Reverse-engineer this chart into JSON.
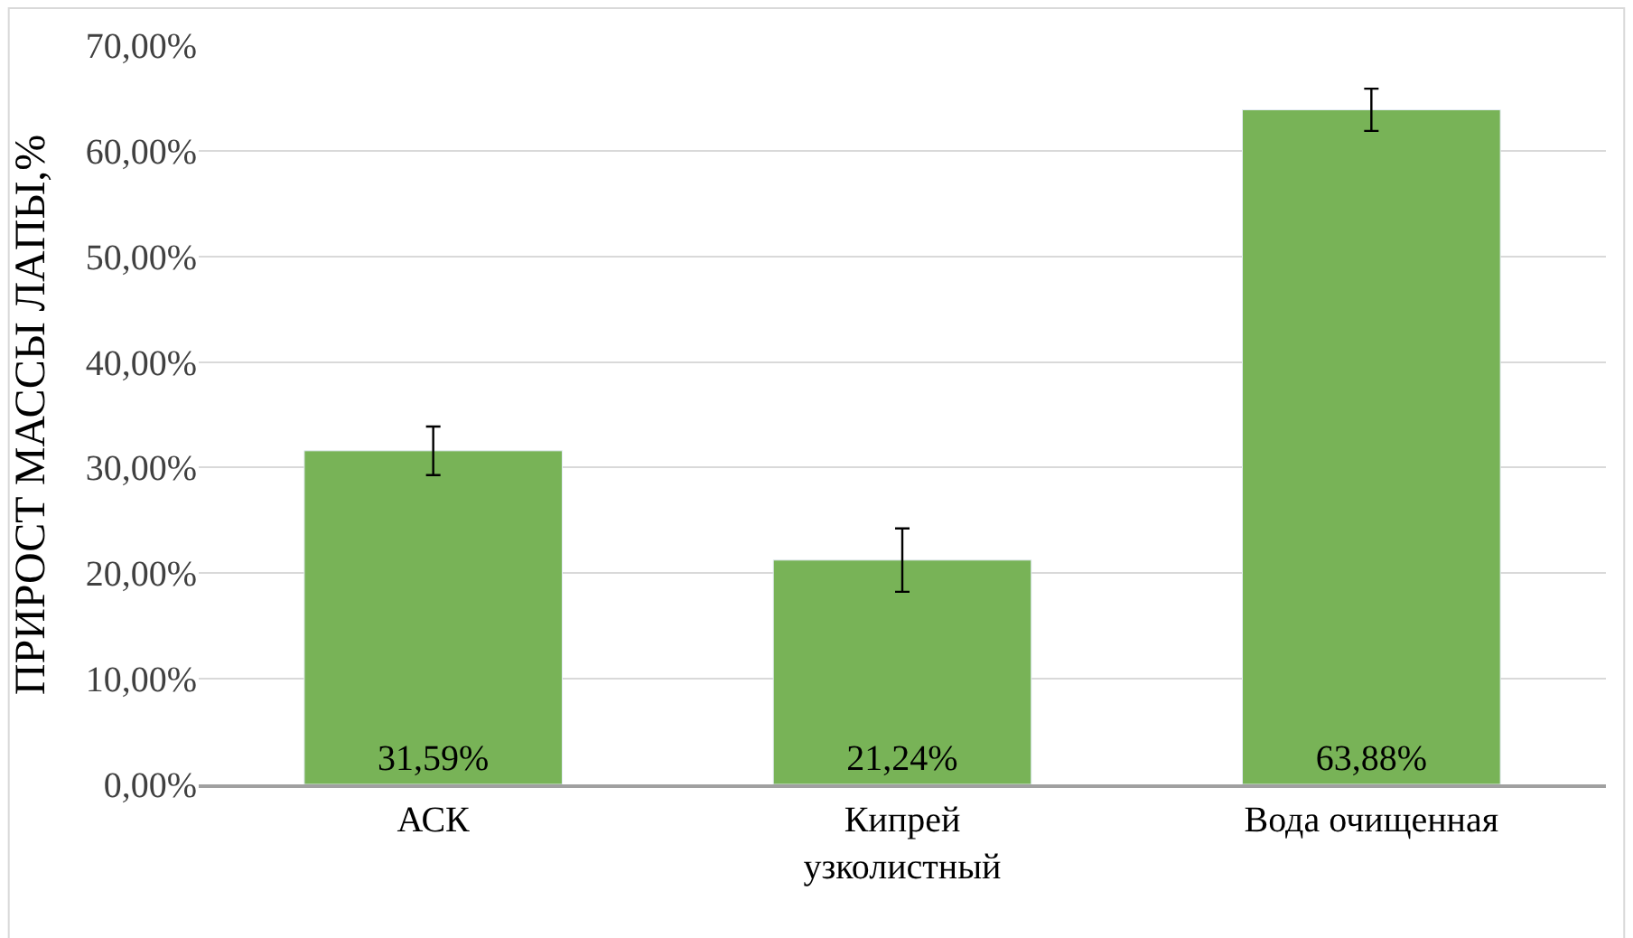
{
  "chart_data": {
    "type": "bar",
    "ylabel": "ПРИРОСТ МАССЫ ЛАПЫ,%",
    "categories": [
      "АСК",
      "Кипрей узколистный",
      "Вода очищенная"
    ],
    "values": [
      31.59,
      21.24,
      63.88
    ],
    "value_labels": [
      "31,59%",
      "21,24%",
      "63,88%"
    ],
    "errors": [
      2.3,
      3.0,
      2.0
    ],
    "color": "#78b357",
    "ylim": [
      0,
      70
    ],
    "yticks": [
      {
        "value": 0,
        "label": "0,00%"
      },
      {
        "value": 10,
        "label": "10,00%"
      },
      {
        "value": 20,
        "label": "20,00%"
      },
      {
        "value": 30,
        "label": "30,00%"
      },
      {
        "value": 40,
        "label": "40,00%"
      },
      {
        "value": 50,
        "label": "50,00%"
      },
      {
        "value": 60,
        "label": "60,00%"
      },
      {
        "value": 70,
        "label": "70,00%"
      }
    ],
    "grid": "y"
  }
}
